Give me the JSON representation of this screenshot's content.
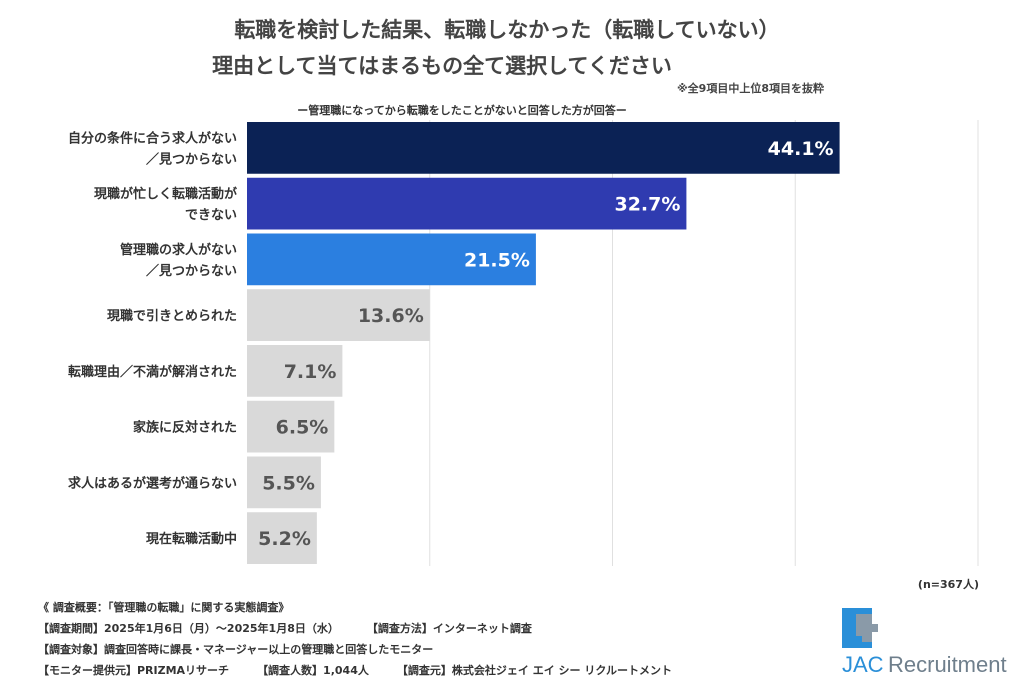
{
  "title_line1": "転職を検討した結果、転職しなかった（転職していない）",
  "title_line2": "理由として当てはまるもの全て選択してください",
  "note": "※全9項目中上位8項目を抜粋",
  "subtitle": "ー管理職になってから転職をしたことがないと回答した方が回答ー",
  "sample_size": "(n=367人)",
  "footer": {
    "overview": "《 調査概要：「管理職の転職」に関する実態調査》",
    "period": "【調査期間】2025年1月6日（月）～2025年1月8日（水）",
    "method": "【調査方法】インターネット調査",
    "target": "【調査対象】調査回答時に課長・マネージャー以上の管理職と回答したモニター",
    "provider": "【モニター提供元】PRIZMAリサーチ",
    "count": "【調査人数】1,044人",
    "source": "【調査元】株式会社ジェイ エイ シー リクルートメント"
  },
  "logo": {
    "text": "JAC Recruitment",
    "colors": [
      "#2a8fd8",
      "#7a8a99"
    ]
  },
  "chart_data": {
    "type": "bar",
    "orientation": "horizontal",
    "categories": [
      [
        "自分の条件に合う求人がない",
        "／見つからない"
      ],
      [
        "現職が忙しく転職活動が",
        "できない"
      ],
      [
        "管理職の求人がない",
        "／見つからない"
      ],
      [
        "現職で引きとめられた"
      ],
      [
        "転職理由／不満が解消された"
      ],
      [
        "家族に反対された"
      ],
      [
        "求人はあるが選考が通らない"
      ],
      [
        "現在転職活動中"
      ]
    ],
    "values": [
      44.1,
      32.7,
      21.5,
      13.6,
      7.1,
      6.5,
      5.5,
      5.2
    ],
    "labels": [
      "44.1%",
      "32.7%",
      "21.5%",
      "13.6%",
      "7.1%",
      "6.5%",
      "5.5%",
      "5.2%"
    ],
    "colors": [
      "#0b2255",
      "#2f3bb0",
      "#2b7fe0",
      "#d9d9d9",
      "#d9d9d9",
      "#d9d9d9",
      "#d9d9d9",
      "#d9d9d9"
    ],
    "label_colors": [
      "#ffffff",
      "#ffffff",
      "#ffffff",
      "#555555",
      "#555555",
      "#555555",
      "#555555",
      "#555555"
    ],
    "xlim": [
      0,
      54.4
    ],
    "grid": true,
    "unit": "%"
  }
}
